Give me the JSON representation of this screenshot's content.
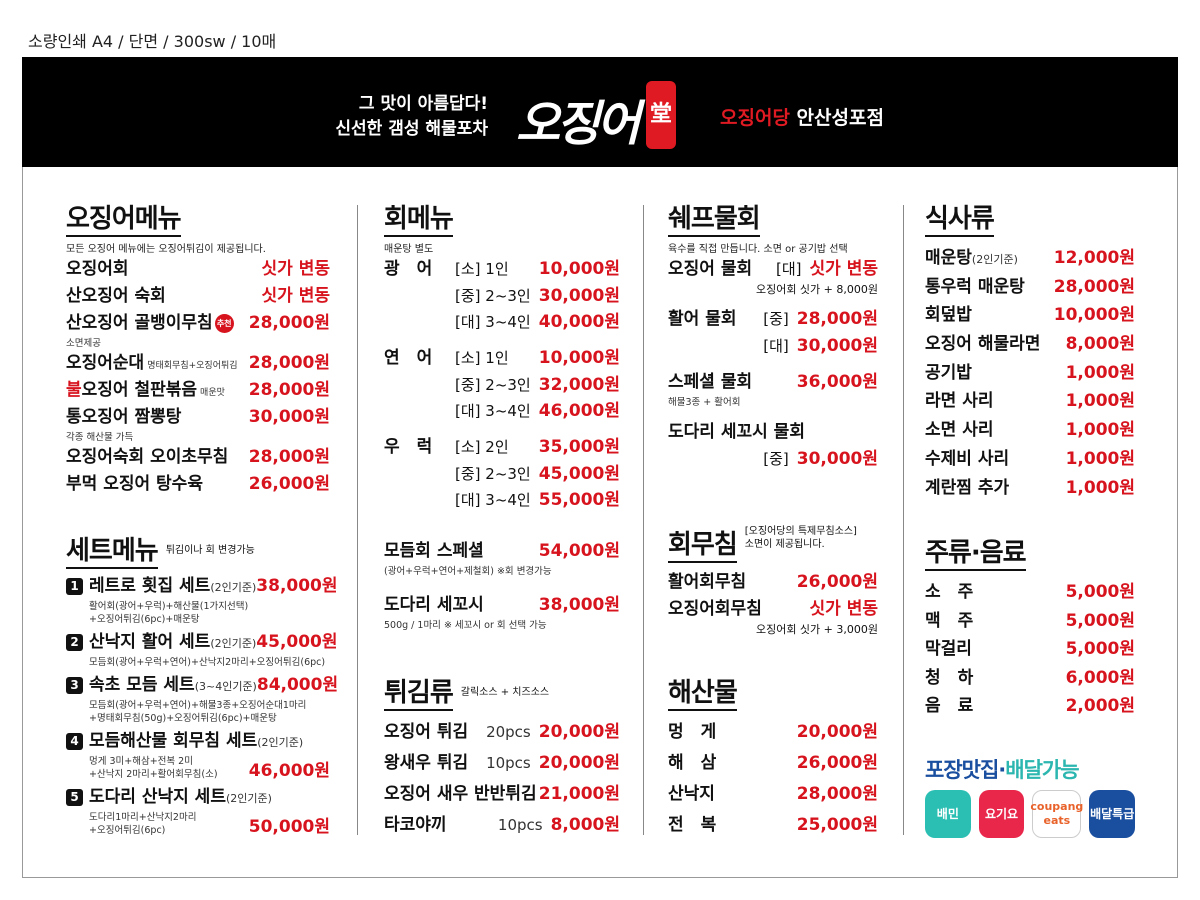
{
  "spec": "소량인쇄 A4 / 단면 / 300sw / 10매",
  "header": {
    "slogan": [
      "그 맛이 아름답다!",
      "신선한 갬성 해물포차"
    ],
    "logo_text": "오징어",
    "logo_seal": "堂",
    "store_brand": "오징어당",
    "store_branch": "안산성포점"
  },
  "colors": {
    "accent": "#d7141e",
    "header_bg": "#000000",
    "delivery_blue": "#1a4fa0",
    "delivery_teal": "#2bb6b0"
  },
  "squid": {
    "title": "오징어메뉴",
    "note": "모든 오징어 메뉴에는 오징어튀김이 제공됩니다.",
    "items": [
      {
        "name": "오징어회",
        "price": "싯가 변동"
      },
      {
        "name": "산오징어 숙회",
        "price": "싯가 변동"
      },
      {
        "name": "산오징어 골뱅이무침",
        "badge": "추천",
        "price": "28,000원",
        "sub": [
          "소면제공"
        ]
      },
      {
        "name": "오징어순대",
        "inline": "명태회무침+오징어튀김",
        "price": "28,000원"
      },
      {
        "name_red": "불",
        "name": "오징어 철판볶음",
        "inline": "매운맛",
        "price": "28,000원"
      },
      {
        "name": "통오징어 짬뽕탕",
        "price": "30,000원",
        "sub": [
          "각종 해산물 가득"
        ]
      },
      {
        "name": "오징어숙회 오이초무침",
        "price": "28,000원"
      },
      {
        "name": "부먹 오징어 탕수육",
        "price": "26,000원"
      }
    ]
  },
  "sets": {
    "title": "세트메뉴",
    "note": "튀김이나 회 변경가능",
    "items": [
      {
        "num": "1",
        "name": "레트로 횟집 세트",
        "qualifier": "(2인기준)",
        "price": "38,000원",
        "sub": [
          "활어회(광어+우럭)+해산물(1가지선택)",
          "+오징어튀김(6pc)+매운탕"
        ]
      },
      {
        "num": "2",
        "name": "산낙지 활어 세트",
        "qualifier": "(2인기준)",
        "price": "45,000원",
        "sub": [
          "모듬회(광어+우럭+연어)+산낙지2마리+오징어튀김(6pc)"
        ]
      },
      {
        "num": "3",
        "name": "속초 모듬 세트",
        "qualifier": "(3~4인기준)",
        "price": "84,000원",
        "sub": [
          "모듬회(광어+우럭+연어)+해물3종+오징어순대1마리",
          "+명태회무침(50g)+오징어튀김(6pc)+매운탕"
        ]
      },
      {
        "num": "4",
        "name": "모듬해산물 회무침 세트",
        "qualifier": "(2인기준)",
        "price": "46,000원",
        "sub": [
          "멍게 3미+해삼+전복 2미",
          "+산낙지 2마리+활어회무침(소)"
        ]
      },
      {
        "num": "5",
        "name": "도다리 산낙지 세트",
        "qualifier": "(2인기준)",
        "price": "50,000원",
        "sub": [
          "도다리1마리+산낙지2마리",
          "+오징어튀김(6pc)"
        ]
      }
    ]
  },
  "sashimi": {
    "title": "회메뉴",
    "note": "매운탕 별도",
    "fish": [
      {
        "name": "광　어",
        "options": [
          {
            "size": "[소] 1인",
            "price": "10,000원"
          },
          {
            "size": "[중] 2~3인",
            "price": "30,000원"
          },
          {
            "size": "[대] 3~4인",
            "price": "40,000원"
          }
        ]
      },
      {
        "name": "연　어",
        "options": [
          {
            "size": "[소] 1인",
            "price": "10,000원"
          },
          {
            "size": "[중] 2~3인",
            "price": "32,000원"
          },
          {
            "size": "[대] 3~4인",
            "price": "46,000원"
          }
        ]
      },
      {
        "name": "우　럭",
        "options": [
          {
            "size": "[소] 2인",
            "price": "35,000원"
          },
          {
            "size": "[중] 2~3인",
            "price": "45,000원"
          },
          {
            "size": "[대] 3~4인",
            "price": "55,000원"
          }
        ]
      }
    ],
    "specials": [
      {
        "name": "모듬회 스페셜",
        "price": "54,000원",
        "sub": [
          "(광어+우럭+연어+제철회)  ※회 변경가능"
        ]
      },
      {
        "name": "도다리 세꼬시",
        "price": "38,000원",
        "sub": [
          "500g / 1마리  ※ 세꼬시 or 회 선택 가능"
        ]
      }
    ]
  },
  "fried": {
    "title": "튀김류",
    "note": "갈릭소스 + 치즈소스",
    "items": [
      {
        "name": "오징어 튀김",
        "pcs": "20pcs",
        "price": "20,000원"
      },
      {
        "name": "왕새우 튀김",
        "pcs": "10pcs",
        "price": "20,000원"
      },
      {
        "name": "오징어 새우 반반튀김",
        "price": "21,000원"
      },
      {
        "name": "타코야끼",
        "pcs": "10pcs",
        "price": "8,000원"
      }
    ]
  },
  "mulhoe": {
    "title": "쉐프물회",
    "note": "육수를 직접 만듭니다. 소면 or 공기밥 선택",
    "items": [
      {
        "name": "오징어 물회",
        "options": [
          {
            "size": "[대]",
            "price": "싯가 변동"
          }
        ],
        "sub": [
          "오징어회 싯가 + 8,000원"
        ]
      },
      {
        "name": "활어 물회",
        "options": [
          {
            "size": "[중]",
            "price": "28,000원"
          },
          {
            "size": "[대]",
            "price": "30,000원"
          }
        ]
      },
      {
        "name": "스페셜 물회",
        "price": "36,000원",
        "sub": [
          "해물3종 + 활어회"
        ]
      },
      {
        "name": "도다리 세꼬시 물회",
        "options": [
          {
            "size": "[중]",
            "price": "30,000원"
          }
        ]
      }
    ]
  },
  "muchim": {
    "title": "회무침",
    "note": [
      "[오징어당의 특제무침소스]",
      "소면이 제공됩니다."
    ],
    "items": [
      {
        "name": "활어회무침",
        "price": "26,000원"
      },
      {
        "name": "오징어회무침",
        "price": "싯가 변동",
        "sub": [
          "오징어회 싯가 + 3,000원"
        ]
      }
    ]
  },
  "seafood": {
    "title": "해산물",
    "items": [
      {
        "name": "멍　게",
        "price": "20,000원"
      },
      {
        "name": "해　삼",
        "price": "26,000원"
      },
      {
        "name": "산낙지",
        "price": "28,000원"
      },
      {
        "name": "전　복",
        "price": "25,000원"
      }
    ]
  },
  "meals": {
    "title": "식사류",
    "items": [
      {
        "name": "매운탕",
        "qualifier": "(2인기준)",
        "price": "12,000원"
      },
      {
        "name": "통우럭 매운탕",
        "price": "28,000원"
      },
      {
        "name": "회덮밥",
        "price": "10,000원"
      },
      {
        "name": "오징어 해물라면",
        "price": "8,000원"
      },
      {
        "name": "공기밥",
        "price": "1,000원"
      },
      {
        "name": "라면 사리",
        "price": "1,000원"
      },
      {
        "name": "소면 사리",
        "price": "1,000원"
      },
      {
        "name": "수제비 사리",
        "price": "1,000원"
      },
      {
        "name": "계란찜 추가",
        "price": "1,000원"
      }
    ]
  },
  "drinks": {
    "title": "주류·음료",
    "items": [
      {
        "name": "소　주",
        "price": "5,000원"
      },
      {
        "name": "맥　주",
        "price": "5,000원"
      },
      {
        "name": "막걸리",
        "price": "5,000원"
      },
      {
        "name": "청　하",
        "price": "6,000원"
      },
      {
        "name": "음　료",
        "price": "2,000원"
      }
    ]
  },
  "delivery": {
    "title_blue": "포장맛집·",
    "title_teal": "배달가능",
    "apps": [
      {
        "label": "배민",
        "icon": "baemin-icon",
        "color": "#2bbfb3"
      },
      {
        "label": "요기요",
        "icon": "yogiyo-icon",
        "color": "#e8274b"
      },
      {
        "label": "coupang eats",
        "icon": "coupang-eats-icon",
        "color": "#ffffff"
      },
      {
        "label": "배달특급",
        "icon": "baedal-teukgeup-icon",
        "color": "#1a4fa0"
      }
    ]
  }
}
